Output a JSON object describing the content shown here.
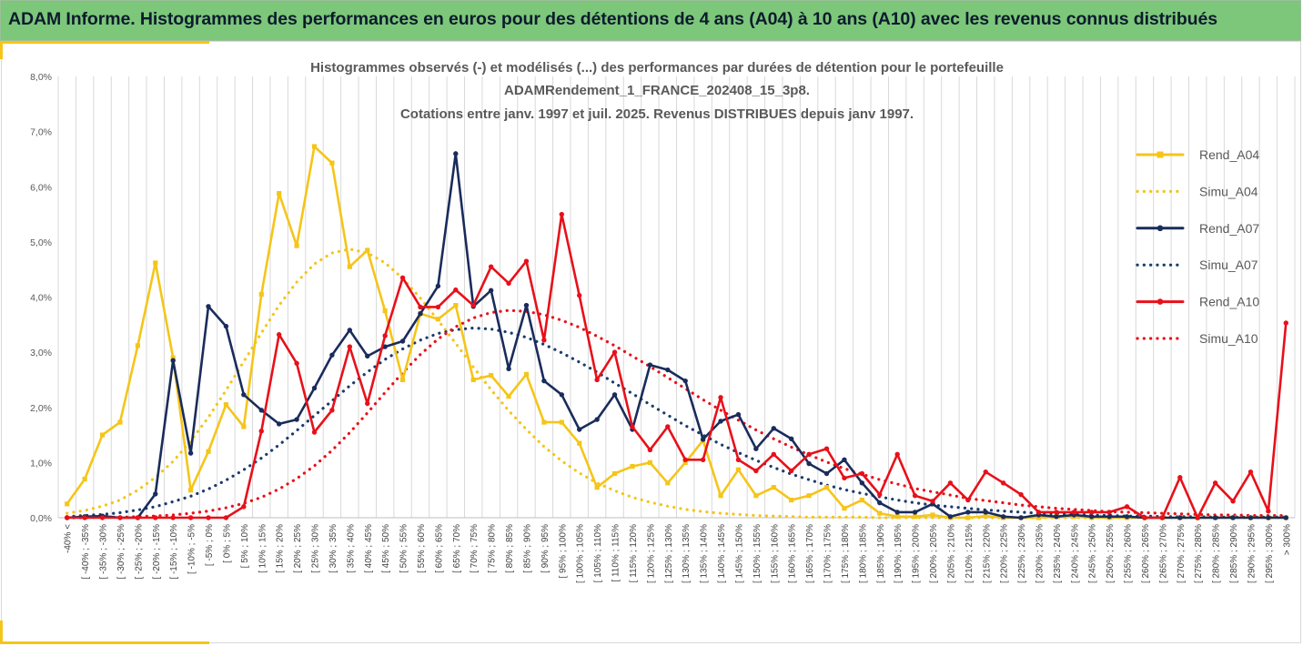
{
  "header": {
    "title": "ADAM Informe. Histogrammes des performances en euros pour des détentions de 4 ans (A04) à 10 ans (A10) avec les revenus connus distribués"
  },
  "chart_data": {
    "type": "line",
    "title_lines": [
      "Histogrammes observés (-) et modélisés (...) des performances par durées de détention pour le portefeuille",
      "ADAMRendement_1_FRANCE_202408_15_3p8.",
      "Cotations entre janv. 1997 et juil. 2025. Revenus DISTRIBUES depuis janv 1997."
    ],
    "xlabel": "",
    "ylabel": "",
    "ylim": [
      0,
      8
    ],
    "y_ticks": [
      "0,0%",
      "1,0%",
      "2,0%",
      "3,0%",
      "4,0%",
      "5,0%",
      "6,0%",
      "7,0%",
      "8,0%"
    ],
    "grid": "vertical",
    "legend_position": "right",
    "categories": [
      "-40% <",
      "[ -40% ; -35%",
      "[ -35% ; -30%",
      "[ -30% ; -25%",
      "[ -25% ; -20%",
      "[ -20% ; -15%",
      "[ -15% ; -10%",
      "[ -10% ; -5%",
      "[ -5% ; 0%",
      "[ 0% ; 5%",
      "[ 5% ; 10%",
      "[ 10% ; 15%",
      "[ 15% ; 20%",
      "[ 20% ; 25%",
      "[ 25% ; 30%",
      "[ 30% ; 35%",
      "[ 35% ; 40%",
      "[ 40% ; 45%",
      "[ 45% ; 50%",
      "[ 50% ; 55%",
      "[ 55% ; 60%",
      "[ 60% ; 65%",
      "[ 65% ; 70%",
      "[ 70% ; 75%",
      "[ 75% ; 80%",
      "[ 80% ; 85%",
      "[ 85% ; 90%",
      "[ 90% ; 95%",
      "[ 95% ; 100%",
      "[ 100% ; 105%",
      "[ 105% ; 110%",
      "[ 110% ; 115%",
      "[ 115% ; 120%",
      "[ 120% ; 125%",
      "[ 125% ; 130%",
      "[ 130% ; 135%",
      "[ 135% ; 140%",
      "[ 140% ; 145%",
      "[ 145% ; 150%",
      "[ 150% ; 155%",
      "[ 155% ; 160%",
      "[ 160% ; 165%",
      "[ 165% ; 170%",
      "[ 170% ; 175%",
      "[ 175% ; 180%",
      "[ 180% ; 185%",
      "[ 185% ; 190%",
      "[ 190% ; 195%",
      "[ 195% ; 200%",
      "[ 200% ; 205%",
      "[ 205% ; 210%",
      "[ 210% ; 215%",
      "[ 215% ; 220%",
      "[ 220% ; 225%",
      "[ 225% ; 230%",
      "[ 230% ; 235%",
      "[ 235% ; 240%",
      "[ 240% ; 245%",
      "[ 245% ; 250%",
      "[ 250% ; 255%",
      "[ 255% ; 260%",
      "[ 260% ; 265%",
      "[ 265% ; 270%",
      "[ 270% ; 275%",
      "[ 275% ; 280%",
      "[ 280% ; 285%",
      "[ 285% ; 290%",
      "[ 290% ; 295%",
      "[ 295% ; 300%",
      "> 300%"
    ],
    "series": [
      {
        "name": "Rend_A04",
        "color": "#f5c518",
        "style": "solid",
        "marker": "square",
        "values": [
          0.25,
          0.7,
          1.5,
          1.73,
          3.12,
          4.62,
          2.9,
          0.5,
          1.2,
          2.05,
          1.65,
          4.05,
          5.88,
          4.93,
          6.73,
          6.43,
          4.55,
          4.85,
          3.75,
          2.5,
          3.7,
          3.6,
          3.85,
          2.5,
          2.58,
          2.2,
          2.6,
          1.73,
          1.73,
          1.35,
          0.55,
          0.8,
          0.93,
          1.0,
          0.63,
          1.0,
          1.4,
          0.4,
          0.87,
          0.4,
          0.55,
          0.32,
          0.4,
          0.55,
          0.17,
          0.32,
          0.08,
          0.02,
          0.02,
          0.05,
          0,
          0,
          0.03,
          0,
          0,
          0,
          0.02,
          0.02,
          0,
          0,
          0,
          0,
          0,
          0,
          0,
          0,
          0,
          0,
          0,
          0
        ]
      },
      {
        "name": "Simu_A04",
        "color": "#f5c518",
        "style": "dotted",
        "values": [
          0.08,
          0.13,
          0.21,
          0.32,
          0.5,
          0.73,
          1.02,
          1.39,
          1.82,
          2.31,
          2.83,
          3.35,
          3.85,
          4.27,
          4.6,
          4.8,
          4.87,
          4.8,
          4.62,
          4.34,
          3.98,
          3.58,
          3.16,
          2.73,
          2.32,
          1.94,
          1.6,
          1.29,
          1.03,
          0.81,
          0.63,
          0.49,
          0.37,
          0.28,
          0.21,
          0.15,
          0.11,
          0.08,
          0.06,
          0.04,
          0.03,
          0.02,
          0.01,
          0.01,
          0.01,
          0.01,
          0,
          0,
          0,
          0,
          0,
          0,
          0,
          0,
          0,
          0,
          0,
          0,
          0,
          0,
          0,
          0,
          0,
          0,
          0,
          0,
          0,
          0,
          0,
          0
        ]
      },
      {
        "name": "Rend_A07",
        "color": "#1a2c5b",
        "style": "solid",
        "marker": "circle",
        "values": [
          0,
          0.02,
          0.03,
          0,
          0,
          0.43,
          2.85,
          1.17,
          3.83,
          3.47,
          2.23,
          1.95,
          1.7,
          1.78,
          2.35,
          2.95,
          3.4,
          2.93,
          3.1,
          3.2,
          3.7,
          4.2,
          6.6,
          3.83,
          4.12,
          2.7,
          3.85,
          2.48,
          2.23,
          1.6,
          1.78,
          2.23,
          1.6,
          2.77,
          2.68,
          2.48,
          1.42,
          1.75,
          1.87,
          1.25,
          1.62,
          1.43,
          0.98,
          0.8,
          1.05,
          0.63,
          0.27,
          0.1,
          0.1,
          0.25,
          0.02,
          0.1,
          0.1,
          0.02,
          0,
          0.05,
          0.02,
          0.05,
          0.02,
          0.02,
          0.02,
          0,
          0,
          0,
          0,
          0,
          0,
          0,
          0,
          0
        ]
      },
      {
        "name": "Simu_A07",
        "color": "#1a3b6e",
        "style": "dotted",
        "values": [
          0.02,
          0.04,
          0.06,
          0.09,
          0.14,
          0.2,
          0.29,
          0.39,
          0.52,
          0.68,
          0.87,
          1.08,
          1.32,
          1.58,
          1.85,
          2.12,
          2.39,
          2.64,
          2.87,
          3.06,
          3.22,
          3.34,
          3.41,
          3.44,
          3.42,
          3.36,
          3.27,
          3.14,
          2.99,
          2.82,
          2.64,
          2.44,
          2.25,
          2.05,
          1.86,
          1.67,
          1.5,
          1.33,
          1.18,
          1.04,
          0.91,
          0.79,
          0.69,
          0.59,
          0.51,
          0.44,
          0.38,
          0.32,
          0.27,
          0.23,
          0.2,
          0.17,
          0.14,
          0.12,
          0.1,
          0.08,
          0.07,
          0.06,
          0.05,
          0.04,
          0.03,
          0.03,
          0.02,
          0.02,
          0.02,
          0.01,
          0.01,
          0.01,
          0.01,
          0.01
        ]
      },
      {
        "name": "Rend_A10",
        "color": "#e8101a",
        "style": "solid",
        "marker": "circle",
        "values": [
          0,
          0,
          0,
          0,
          0,
          0,
          0,
          0,
          0,
          0,
          0.2,
          1.57,
          3.32,
          2.8,
          1.55,
          1.95,
          3.1,
          2.07,
          3.3,
          4.35,
          3.82,
          3.82,
          4.13,
          3.85,
          4.55,
          4.25,
          4.65,
          3.22,
          5.5,
          4.03,
          2.5,
          3.0,
          1.65,
          1.23,
          1.65,
          1.05,
          1.05,
          2.18,
          1.05,
          0.85,
          1.15,
          0.85,
          1.15,
          1.25,
          0.72,
          0.8,
          0.42,
          1.15,
          0.4,
          0.3,
          0.63,
          0.32,
          0.83,
          0.63,
          0.42,
          0.1,
          0.1,
          0.1,
          0.1,
          0.1,
          0.2,
          0,
          0,
          0.73,
          0,
          0.63,
          0.3,
          0.83,
          0.12,
          3.53
        ]
      },
      {
        "name": "Simu_A10",
        "color": "#e8101a",
        "style": "dotted",
        "values": [
          0,
          0,
          0.01,
          0.01,
          0.02,
          0.03,
          0.05,
          0.08,
          0.12,
          0.18,
          0.26,
          0.37,
          0.52,
          0.71,
          0.94,
          1.22,
          1.54,
          1.9,
          2.27,
          2.63,
          2.96,
          3.24,
          3.46,
          3.62,
          3.72,
          3.76,
          3.74,
          3.68,
          3.58,
          3.45,
          3.29,
          3.12,
          2.93,
          2.74,
          2.54,
          2.34,
          2.14,
          1.95,
          1.77,
          1.59,
          1.43,
          1.28,
          1.14,
          1.01,
          0.89,
          0.79,
          0.69,
          0.61,
          0.53,
          0.47,
          0.41,
          0.35,
          0.31,
          0.27,
          0.23,
          0.2,
          0.17,
          0.15,
          0.13,
          0.11,
          0.1,
          0.09,
          0.08,
          0.07,
          0.06,
          0.05,
          0.05,
          0.04,
          0.04,
          0.04
        ]
      }
    ]
  }
}
